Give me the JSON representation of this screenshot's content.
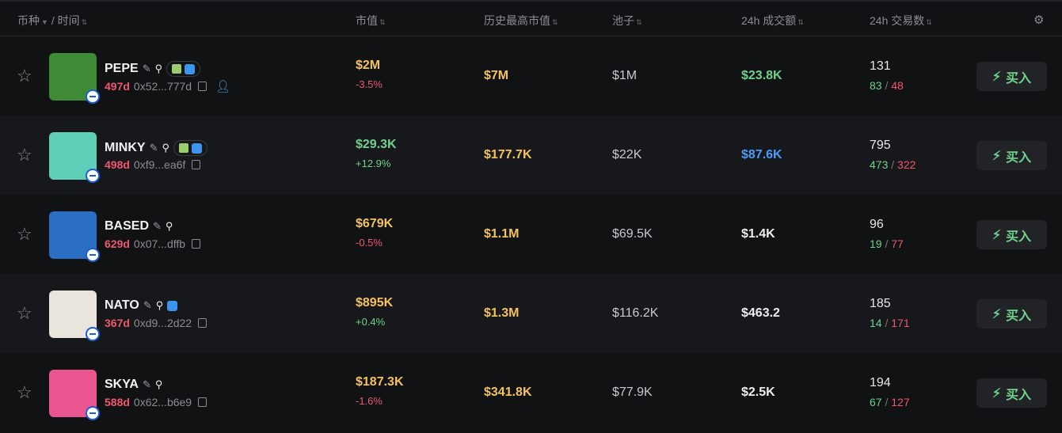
{
  "header": {
    "coin": "币种",
    "sep": "/",
    "time": "时间",
    "mcap": "市值",
    "ath": "历史最高市值",
    "pool": "池子",
    "vol": "24h 成交额",
    "txns": "24h 交易数"
  },
  "buy_label": "买入",
  "colors": {
    "positive": "#6fd28f",
    "negative": "#f0566f",
    "highlight": "#f5c35b",
    "blue": "#4b9cf5"
  },
  "rows": [
    {
      "name": "PEPE",
      "age": "497d",
      "addr": "0x52...777d",
      "badges": true,
      "holder_icon": true,
      "mcap": "$2M",
      "change": "-3.5%",
      "ath": "$7M",
      "pool": "$1M",
      "vol": "$23.8K",
      "txns": "131",
      "buys": "83",
      "sells": "48",
      "mc_color": "y",
      "chg_color": "r",
      "vol_color": "g",
      "avatar": "#3f8a34"
    },
    {
      "name": "MINKY",
      "age": "498d",
      "addr": "0xf9...ea6f",
      "badges": true,
      "mcap": "$29.3K",
      "change": "+12.9%",
      "ath": "$177.7K",
      "pool": "$22K",
      "vol": "$87.6K",
      "txns": "795",
      "buys": "473",
      "sells": "322",
      "mc_color": "g",
      "chg_color": "g",
      "vol_color": "bl",
      "avatar": "#5fcfb8"
    },
    {
      "name": "BASED",
      "age": "629d",
      "addr": "0x07...dffb",
      "mcap": "$679K",
      "change": "-0.5%",
      "ath": "$1.1M",
      "pool": "$69.5K",
      "vol": "$1.4K",
      "txns": "96",
      "buys": "19",
      "sells": "77",
      "mc_color": "y",
      "chg_color": "r",
      "vol_color": "w",
      "avatar": "#2a6fc4"
    },
    {
      "name": "NATO",
      "age": "367d",
      "addr": "0xd9...2d22",
      "twitter_only": true,
      "mcap": "$895K",
      "change": "+0.4%",
      "ath": "$1.3M",
      "pool": "$116.2K",
      "vol": "$463.2",
      "txns": "185",
      "buys": "14",
      "sells": "171",
      "mc_color": "y",
      "chg_color": "g",
      "vol_color": "w",
      "avatar": "#e9e4dc"
    },
    {
      "name": "SKYA",
      "age": "588d",
      "addr": "0x62...b6e9",
      "mcap": "$187.3K",
      "change": "-1.6%",
      "ath": "$341.8K",
      "pool": "$77.9K",
      "vol": "$2.5K",
      "txns": "194",
      "buys": "67",
      "sells": "127",
      "mc_color": "y",
      "chg_color": "r",
      "vol_color": "w",
      "avatar": "#e8558f"
    }
  ]
}
